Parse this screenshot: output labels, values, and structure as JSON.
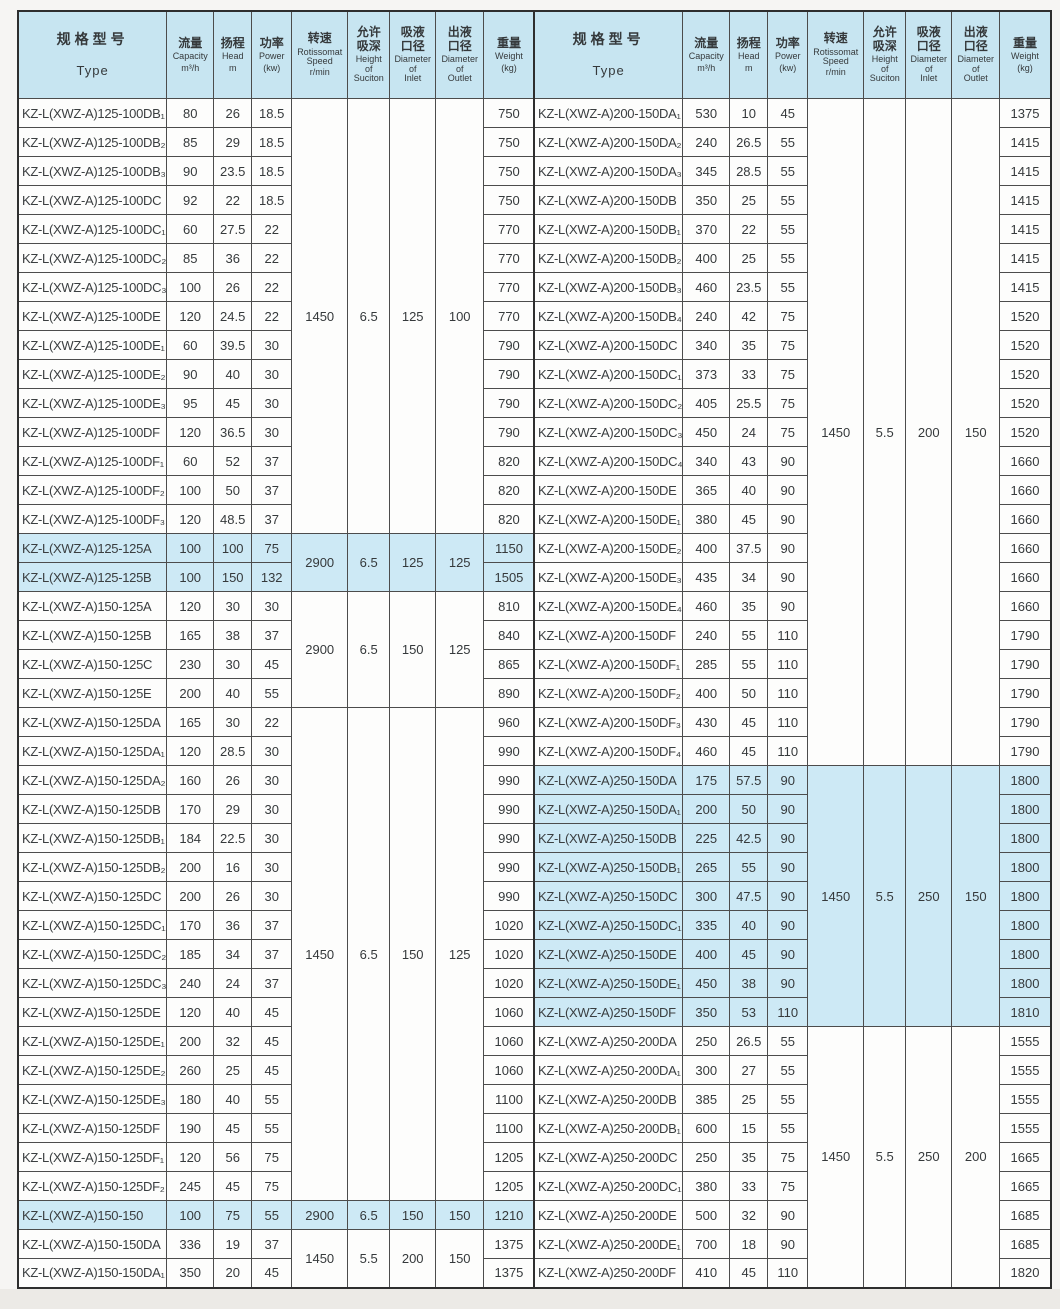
{
  "page": {
    "colors": {
      "header_bg": "#c7e5f1",
      "highlight_bg": "#cde9f5",
      "border": "#4c4c4c",
      "text": "#35393b",
      "page_bg": "#f6f5f3"
    }
  },
  "header": {
    "type": {
      "cn": "规格型号",
      "en": "Type"
    },
    "cols": [
      {
        "key": "capacity",
        "cn": "流量",
        "en": "Capacity",
        "unit": "m³/h"
      },
      {
        "key": "head",
        "cn": "扬程",
        "en": "Head",
        "unit": "m"
      },
      {
        "key": "power",
        "cn": "功率",
        "en": "Power",
        "unit": "(kw)"
      },
      {
        "key": "speed",
        "cn": "转速",
        "en": "Rotissomat\nSpeed",
        "unit": "r/min"
      },
      {
        "key": "suction",
        "cn": "允许\n吸深",
        "en": "Height\nof\nSuciton",
        "unit": ""
      },
      {
        "key": "inlet",
        "cn": "吸液\n口径",
        "en": "Diameter\nof\nInlet",
        "unit": ""
      },
      {
        "key": "outlet",
        "cn": "出液\n口径",
        "en": "Diameter\nof\nOutlet",
        "unit": ""
      },
      {
        "key": "weight",
        "cn": "重量",
        "en": "Weight",
        "unit": "(kg)"
      }
    ]
  },
  "tables": [
    {
      "name": "left",
      "groups": [
        {
          "highlight": false,
          "speed": "1450",
          "suction": "6.5",
          "inlet": "125",
          "outlet": "100",
          "rows": [
            [
              "KZ-L(XWZ-A)125-100DB₁",
              "80",
              "26",
              "18.5",
              "750"
            ],
            [
              "KZ-L(XWZ-A)125-100DB₂",
              "85",
              "29",
              "18.5",
              "750"
            ],
            [
              "KZ-L(XWZ-A)125-100DB₃",
              "90",
              "23.5",
              "18.5",
              "750"
            ],
            [
              "KZ-L(XWZ-A)125-100DC",
              "92",
              "22",
              "18.5",
              "750"
            ],
            [
              "KZ-L(XWZ-A)125-100DC₁",
              "60",
              "27.5",
              "22",
              "770"
            ],
            [
              "KZ-L(XWZ-A)125-100DC₂",
              "85",
              "36",
              "22",
              "770"
            ],
            [
              "KZ-L(XWZ-A)125-100DC₃",
              "100",
              "26",
              "22",
              "770"
            ],
            [
              "KZ-L(XWZ-A)125-100DE",
              "120",
              "24.5",
              "22",
              "770"
            ],
            [
              "KZ-L(XWZ-A)125-100DE₁",
              "60",
              "39.5",
              "30",
              "790"
            ],
            [
              "KZ-L(XWZ-A)125-100DE₂",
              "90",
              "40",
              "30",
              "790"
            ],
            [
              "KZ-L(XWZ-A)125-100DE₃",
              "95",
              "45",
              "30",
              "790"
            ],
            [
              "KZ-L(XWZ-A)125-100DF",
              "120",
              "36.5",
              "30",
              "790"
            ],
            [
              "KZ-L(XWZ-A)125-100DF₁",
              "60",
              "52",
              "37",
              "820"
            ],
            [
              "KZ-L(XWZ-A)125-100DF₂",
              "100",
              "50",
              "37",
              "820"
            ],
            [
              "KZ-L(XWZ-A)125-100DF₃",
              "120",
              "48.5",
              "37",
              "820"
            ]
          ]
        },
        {
          "highlight": true,
          "speed": "2900",
          "suction": "6.5",
          "inlet": "125",
          "outlet": "125",
          "rows": [
            [
              "KZ-L(XWZ-A)125-125A",
              "100",
              "100",
              "75",
              "1150"
            ],
            [
              "KZ-L(XWZ-A)125-125B",
              "100",
              "150",
              "132",
              "1505"
            ]
          ]
        },
        {
          "highlight": false,
          "speed": "2900",
          "suction": "6.5",
          "inlet": "150",
          "outlet": "125",
          "rows": [
            [
              "KZ-L(XWZ-A)150-125A",
              "120",
              "30",
              "30",
              "810"
            ],
            [
              "KZ-L(XWZ-A)150-125B",
              "165",
              "38",
              "37",
              "840"
            ],
            [
              "KZ-L(XWZ-A)150-125C",
              "230",
              "30",
              "45",
              "865"
            ],
            [
              "KZ-L(XWZ-A)150-125E",
              "200",
              "40",
              "55",
              "890"
            ]
          ]
        },
        {
          "highlight": false,
          "speed": "1450",
          "suction": "6.5",
          "inlet": "150",
          "outlet": "125",
          "rows": [
            [
              "KZ-L(XWZ-A)150-125DA",
              "165",
              "30",
              "22",
              "960"
            ],
            [
              "KZ-L(XWZ-A)150-125DA₁",
              "120",
              "28.5",
              "30",
              "990"
            ],
            [
              "KZ-L(XWZ-A)150-125DA₂",
              "160",
              "26",
              "30",
              "990"
            ],
            [
              "KZ-L(XWZ-A)150-125DB",
              "170",
              "29",
              "30",
              "990"
            ],
            [
              "KZ-L(XWZ-A)150-125DB₁",
              "184",
              "22.5",
              "30",
              "990"
            ],
            [
              "KZ-L(XWZ-A)150-125DB₂",
              "200",
              "16",
              "30",
              "990"
            ],
            [
              "KZ-L(XWZ-A)150-125DC",
              "200",
              "26",
              "30",
              "990"
            ],
            [
              "KZ-L(XWZ-A)150-125DC₁",
              "170",
              "36",
              "37",
              "1020"
            ],
            [
              "KZ-L(XWZ-A)150-125DC₂",
              "185",
              "34",
              "37",
              "1020"
            ],
            [
              "KZ-L(XWZ-A)150-125DC₃",
              "240",
              "24",
              "37",
              "1020"
            ],
            [
              "KZ-L(XWZ-A)150-125DE",
              "120",
              "40",
              "45",
              "1060"
            ],
            [
              "KZ-L(XWZ-A)150-125DE₁",
              "200",
              "32",
              "45",
              "1060"
            ],
            [
              "KZ-L(XWZ-A)150-125DE₂",
              "260",
              "25",
              "45",
              "1060"
            ],
            [
              "KZ-L(XWZ-A)150-125DE₃",
              "180",
              "40",
              "55",
              "1100"
            ],
            [
              "KZ-L(XWZ-A)150-125DF",
              "190",
              "45",
              "55",
              "1100"
            ],
            [
              "KZ-L(XWZ-A)150-125DF₁",
              "120",
              "56",
              "75",
              "1205"
            ],
            [
              "KZ-L(XWZ-A)150-125DF₂",
              "245",
              "45",
              "75",
              "1205"
            ]
          ]
        },
        {
          "highlight": true,
          "speed": "2900",
          "suction": "6.5",
          "inlet": "150",
          "outlet": "150",
          "rows": [
            [
              "KZ-L(XWZ-A)150-150",
              "100",
              "75",
              "55",
              "1210"
            ]
          ]
        },
        {
          "highlight": false,
          "speed": "1450",
          "suction": "5.5",
          "inlet": "200",
          "outlet": "150",
          "rows": [
            [
              "KZ-L(XWZ-A)150-150DA",
              "336",
              "19",
              "37",
              "1375"
            ],
            [
              "KZ-L(XWZ-A)150-150DA₁",
              "350",
              "20",
              "45",
              "1375"
            ]
          ]
        }
      ]
    },
    {
      "name": "right",
      "groups": [
        {
          "highlight": false,
          "speed": "1450",
          "suction": "5.5",
          "inlet": "200",
          "outlet": "150",
          "rows": [
            [
              "KZ-L(XWZ-A)200-150DA₁",
              "530",
              "10",
              "45",
              "1375"
            ],
            [
              "KZ-L(XWZ-A)200-150DA₂",
              "240",
              "26.5",
              "55",
              "1415"
            ],
            [
              "KZ-L(XWZ-A)200-150DA₃",
              "345",
              "28.5",
              "55",
              "1415"
            ],
            [
              "KZ-L(XWZ-A)200-150DB",
              "350",
              "25",
              "55",
              "1415"
            ],
            [
              "KZ-L(XWZ-A)200-150DB₁",
              "370",
              "22",
              "55",
              "1415"
            ],
            [
              "KZ-L(XWZ-A)200-150DB₂",
              "400",
              "25",
              "55",
              "1415"
            ],
            [
              "KZ-L(XWZ-A)200-150DB₃",
              "460",
              "23.5",
              "55",
              "1415"
            ],
            [
              "KZ-L(XWZ-A)200-150DB₄",
              "240",
              "42",
              "75",
              "1520"
            ],
            [
              "KZ-L(XWZ-A)200-150DC",
              "340",
              "35",
              "75",
              "1520"
            ],
            [
              "KZ-L(XWZ-A)200-150DC₁",
              "373",
              "33",
              "75",
              "1520"
            ],
            [
              "KZ-L(XWZ-A)200-150DC₂",
              "405",
              "25.5",
              "75",
              "1520"
            ],
            [
              "KZ-L(XWZ-A)200-150DC₃",
              "450",
              "24",
              "75",
              "1520"
            ],
            [
              "KZ-L(XWZ-A)200-150DC₄",
              "340",
              "43",
              "90",
              "1660"
            ],
            [
              "KZ-L(XWZ-A)200-150DE",
              "365",
              "40",
              "90",
              "1660"
            ],
            [
              "KZ-L(XWZ-A)200-150DE₁",
              "380",
              "45",
              "90",
              "1660"
            ],
            [
              "KZ-L(XWZ-A)200-150DE₂",
              "400",
              "37.5",
              "90",
              "1660"
            ],
            [
              "KZ-L(XWZ-A)200-150DE₃",
              "435",
              "34",
              "90",
              "1660"
            ],
            [
              "KZ-L(XWZ-A)200-150DE₄",
              "460",
              "35",
              "90",
              "1660"
            ],
            [
              "KZ-L(XWZ-A)200-150DF",
              "240",
              "55",
              "110",
              "1790"
            ],
            [
              "KZ-L(XWZ-A)200-150DF₁",
              "285",
              "55",
              "110",
              "1790"
            ],
            [
              "KZ-L(XWZ-A)200-150DF₂",
              "400",
              "50",
              "110",
              "1790"
            ],
            [
              "KZ-L(XWZ-A)200-150DF₃",
              "430",
              "45",
              "110",
              "1790"
            ],
            [
              "KZ-L(XWZ-A)200-150DF₄",
              "460",
              "45",
              "110",
              "1790"
            ]
          ]
        },
        {
          "highlight": true,
          "speed": "1450",
          "suction": "5.5",
          "inlet": "250",
          "outlet": "150",
          "rows": [
            [
              "KZ-L(XWZ-A)250-150DA",
              "175",
              "57.5",
              "90",
              "1800"
            ],
            [
              "KZ-L(XWZ-A)250-150DA₁",
              "200",
              "50",
              "90",
              "1800"
            ],
            [
              "KZ-L(XWZ-A)250-150DB",
              "225",
              "42.5",
              "90",
              "1800"
            ],
            [
              "KZ-L(XWZ-A)250-150DB₁",
              "265",
              "55",
              "90",
              "1800"
            ],
            [
              "KZ-L(XWZ-A)250-150DC",
              "300",
              "47.5",
              "90",
              "1800"
            ],
            [
              "KZ-L(XWZ-A)250-150DC₁",
              "335",
              "40",
              "90",
              "1800"
            ],
            [
              "KZ-L(XWZ-A)250-150DE",
              "400",
              "45",
              "90",
              "1800"
            ],
            [
              "KZ-L(XWZ-A)250-150DE₁",
              "450",
              "38",
              "90",
              "1800"
            ],
            [
              "KZ-L(XWZ-A)250-150DF",
              "350",
              "53",
              "110",
              "1810"
            ]
          ]
        },
        {
          "highlight": false,
          "speed": "1450",
          "suction": "5.5",
          "inlet": "250",
          "outlet": "200",
          "rows": [
            [
              "KZ-L(XWZ-A)250-200DA",
              "250",
              "26.5",
              "55",
              "1555"
            ],
            [
              "KZ-L(XWZ-A)250-200DA₁",
              "300",
              "27",
              "55",
              "1555"
            ],
            [
              "KZ-L(XWZ-A)250-200DB",
              "385",
              "25",
              "55",
              "1555"
            ],
            [
              "KZ-L(XWZ-A)250-200DB₁",
              "600",
              "15",
              "55",
              "1555"
            ],
            [
              "KZ-L(XWZ-A)250-200DC",
              "250",
              "35",
              "75",
              "1665"
            ],
            [
              "KZ-L(XWZ-A)250-200DC₁",
              "380",
              "33",
              "75",
              "1665"
            ],
            [
              "KZ-L(XWZ-A)250-200DE",
              "500",
              "32",
              "90",
              "1685"
            ],
            [
              "KZ-L(XWZ-A)250-200DE₁",
              "700",
              "18",
              "90",
              "1685"
            ],
            [
              "KZ-L(XWZ-A)250-200DF",
              "410",
              "45",
              "110",
              "1820"
            ]
          ]
        }
      ]
    }
  ]
}
